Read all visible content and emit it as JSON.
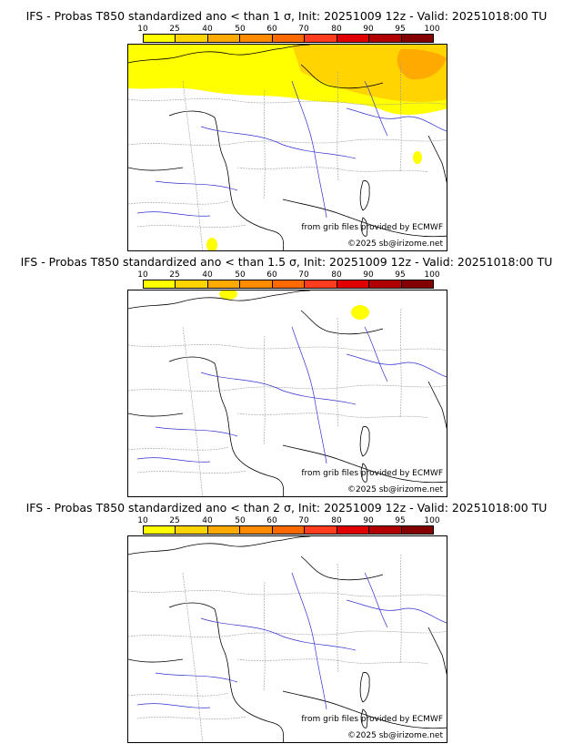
{
  "scale": {
    "labels": [
      "10",
      "25",
      "40",
      "50",
      "60",
      "70",
      "80",
      "90",
      "95",
      "100"
    ],
    "colors": [
      "#ffff00",
      "#ffd400",
      "#ffaa00",
      "#ff8c00",
      "#ff6a00",
      "#ff3c1e",
      "#e00000",
      "#b00000",
      "#820000"
    ]
  },
  "panels": [
    {
      "title": "IFS - Probas T850  standardized ano < than 1 σ, Init: 20251009 12z - Valid: 20251018:00 TU",
      "credit": "from grib files provided by ECMWF",
      "copyright": "©2025 sb@irizome.net",
      "coverage": "extensive"
    },
    {
      "title": "IFS - Probas T850  standardized ano < than 1.5 σ, Init: 20251009 12z - Valid: 20251018:00 TU",
      "credit": "from grib files provided by ECMWF",
      "copyright": "©2025 sb@irizome.net",
      "coverage": "small"
    },
    {
      "title": "IFS - Probas T850  standardized ano < than 2 σ, Init: 20251009 12z - Valid: 20251018:00 TU",
      "credit": "from grib files provided by ECMWF",
      "copyright": "©2025 sb@irizome.net",
      "coverage": "none"
    }
  ]
}
